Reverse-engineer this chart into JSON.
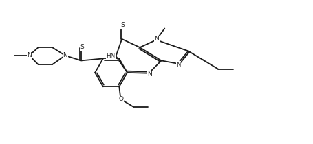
{
  "bg_color": "#ffffff",
  "line_color": "#1a1a1a",
  "fig_width": 4.56,
  "fig_height": 2.1,
  "dpi": 100,
  "lw": 1.3,
  "fs": 6.5,
  "xlim": [
    0,
    10.5
  ],
  "ylim": [
    0,
    4.8
  ]
}
